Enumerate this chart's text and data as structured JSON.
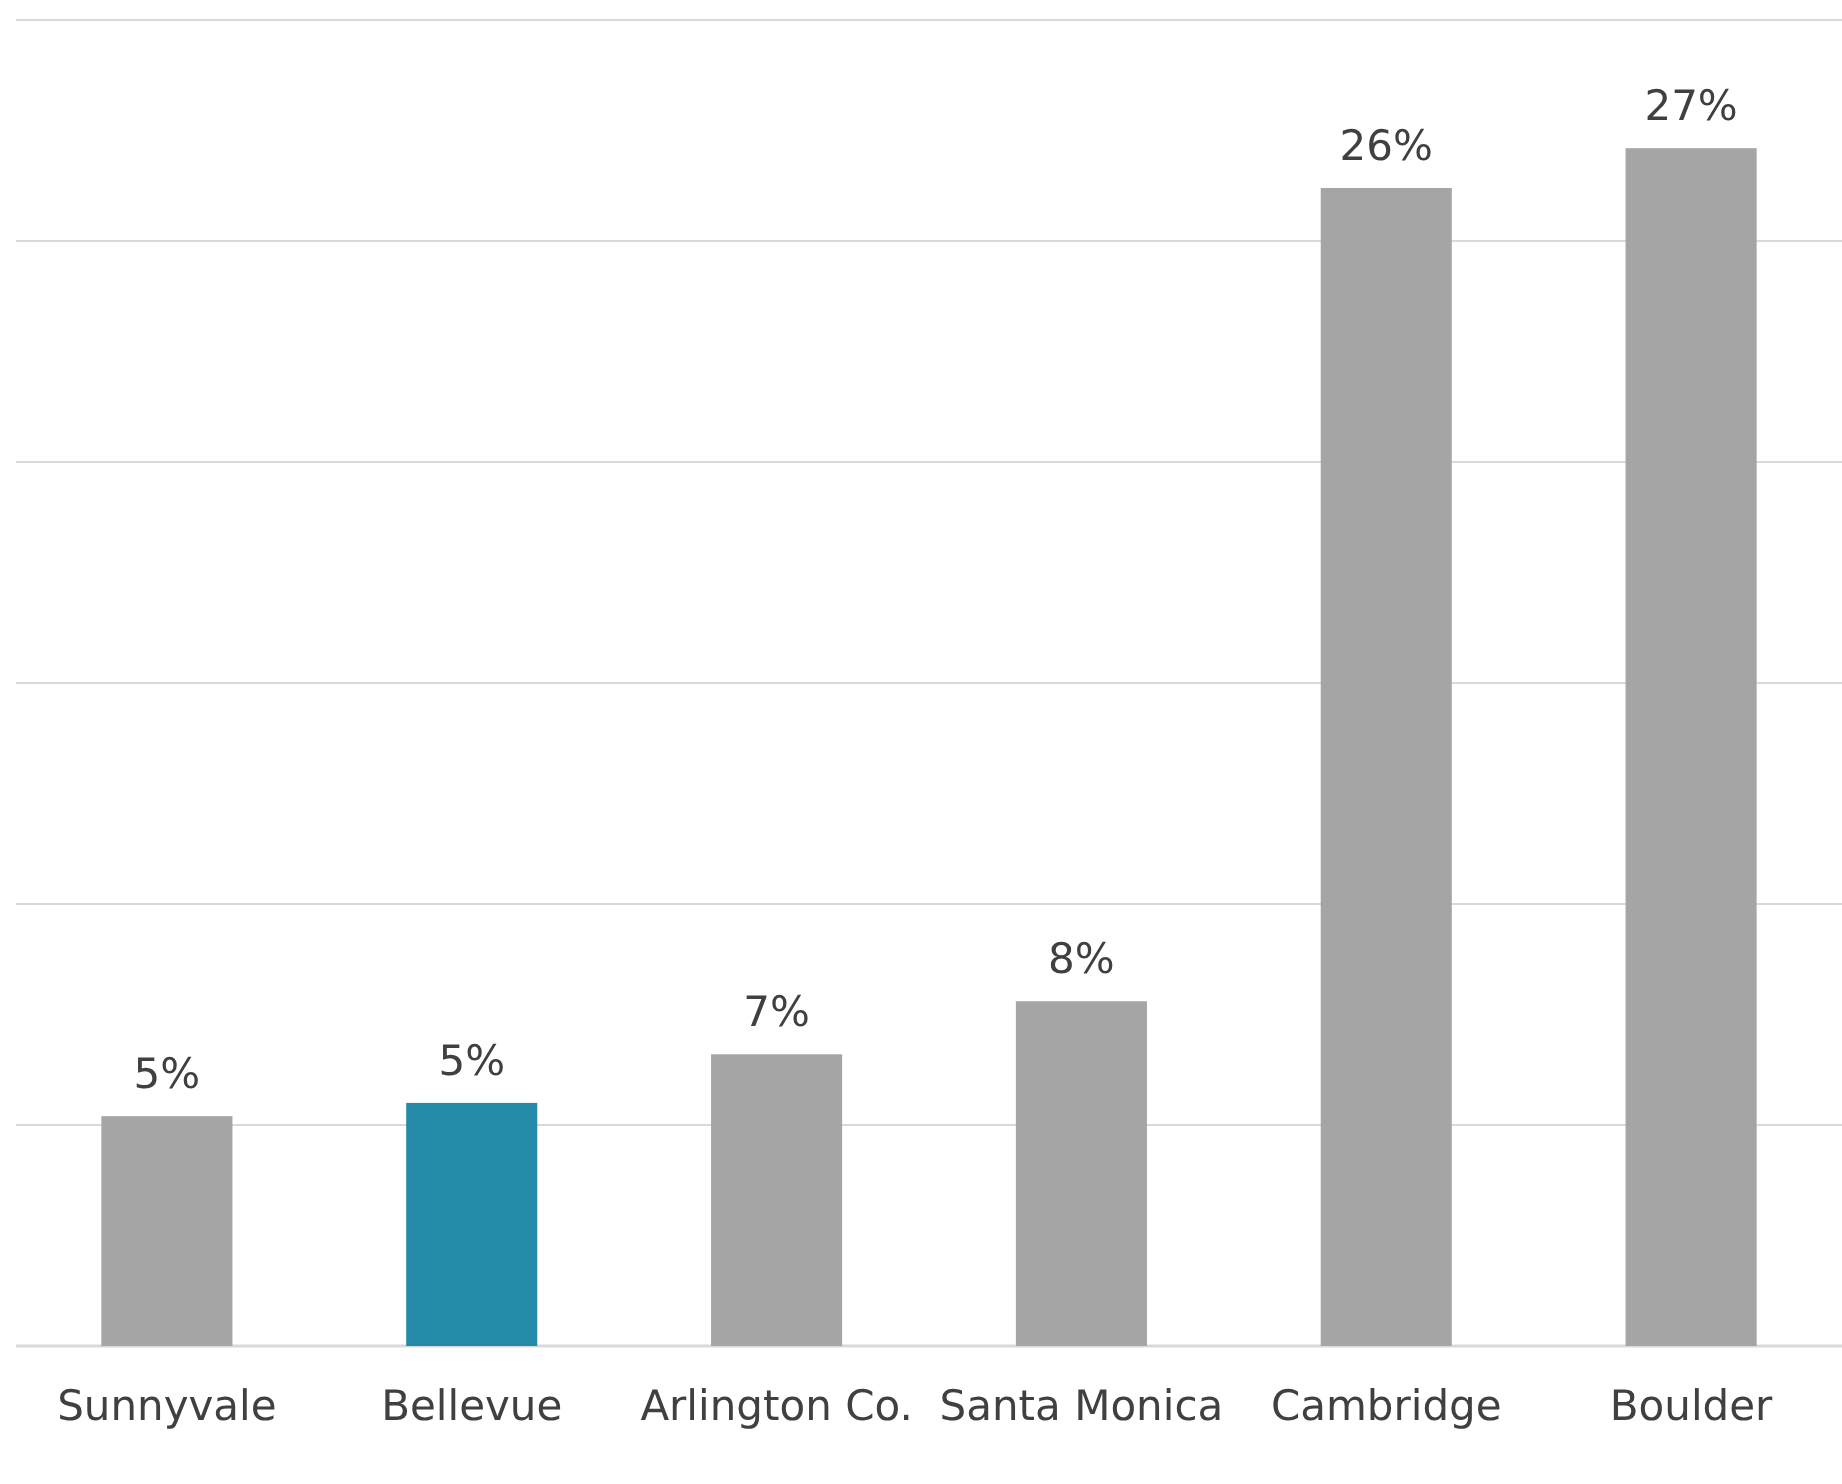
{
  "chart_data": {
    "type": "bar",
    "categories": [
      "Sunnyvale",
      "Bellevue",
      "Arlington Co.",
      "Santa Monica",
      "Cambridge",
      "Boulder"
    ],
    "values": [
      5.2,
      5.5,
      6.6,
      7.8,
      26.2,
      27.1
    ],
    "value_labels": [
      "5%",
      "5%",
      "7%",
      "8%",
      "26%",
      "27%"
    ],
    "colors": [
      "#a5a5a5",
      "#2589a8",
      "#a5a5a5",
      "#a5a5a5",
      "#a5a5a5",
      "#a5a5a5"
    ],
    "ylim": [
      0,
      30
    ],
    "yticks": [
      {
        "value": 0,
        "label": null
      },
      {
        "value": 5,
        "label": null
      },
      {
        "value": 10,
        "label": null
      },
      {
        "value": 15,
        "label": null
      },
      {
        "value": 20,
        "label": null
      },
      {
        "value": 25,
        "label": null
      },
      {
        "value": 30,
        "label": null
      }
    ],
    "grid": "y",
    "tick_labels": "x"
  }
}
